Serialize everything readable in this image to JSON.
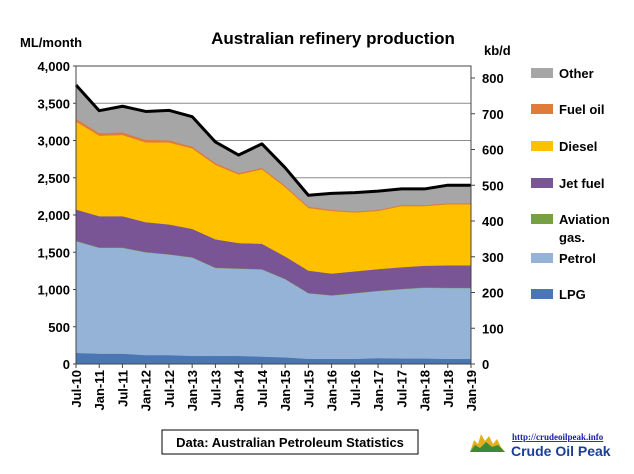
{
  "chart_data": {
    "type": "area",
    "stacked": true,
    "title": "Australian refinery production",
    "ylabel": "ML/month",
    "y2label": "kb/d",
    "ylim": [
      0,
      4000
    ],
    "y2lim": [
      0,
      800
    ],
    "yticks": [
      "4,000",
      "3,500",
      "3,000",
      "2,500",
      "2,000",
      "1,500",
      "1,000",
      "500",
      "0"
    ],
    "y2ticks": [
      "800",
      "700",
      "600",
      "500",
      "400",
      "300",
      "200",
      "100",
      "0"
    ],
    "xtick_labels": [
      "Jul-10",
      "Jan-11",
      "Jul-11",
      "Jan-12",
      "Jul-12",
      "Jan-13",
      "Jul-13",
      "Jan-14",
      "Jul-14",
      "Jan-15",
      "Jul-15",
      "Jan-16",
      "Jul-16",
      "Jan-17",
      "Jul-17",
      "Jan-18",
      "Jul-18",
      "Jan-19"
    ],
    "x_range": [
      "Jul-10",
      "Jan-19"
    ],
    "grid": "horizontal",
    "legend_position": "right",
    "source_note": "Data: Australian Petroleum Statistics",
    "x": [
      "Jul-10",
      "Jan-11",
      "Jul-11",
      "Jan-12",
      "Jul-12",
      "Jan-13",
      "Jul-13",
      "Jan-14",
      "Jul-14",
      "Jan-15",
      "Jul-15",
      "Jan-16",
      "Jul-16",
      "Jan-17",
      "Jul-17",
      "Jan-18",
      "Jul-18",
      "Jan-19"
    ],
    "series": [
      {
        "name": "LPG",
        "color": "#4a76b4",
        "values": [
          150,
          140,
          140,
          120,
          120,
          110,
          110,
          110,
          100,
          90,
          70,
          70,
          70,
          80,
          75,
          75,
          70,
          70
        ]
      },
      {
        "name": "Petrol",
        "color": "#95b3d7",
        "values": [
          1500,
          1420,
          1420,
          1380,
          1350,
          1320,
          1180,
          1170,
          1170,
          1050,
          880,
          850,
          880,
          900,
          930,
          950,
          950,
          950
        ]
      },
      {
        "name": "Aviation gas.",
        "color": "#77a043",
        "values": [
          5,
          5,
          5,
          5,
          5,
          5,
          5,
          5,
          5,
          5,
          5,
          5,
          5,
          5,
          5,
          5,
          5,
          5
        ]
      },
      {
        "name": "Jet fuel",
        "color": "#7a5596",
        "values": [
          420,
          420,
          420,
          400,
          400,
          380,
          380,
          340,
          340,
          300,
          300,
          290,
          290,
          290,
          290,
          290,
          300,
          300
        ]
      },
      {
        "name": "Diesel",
        "color": "#ffc000",
        "values": [
          1180,
          1080,
          1090,
          1070,
          1100,
          1080,
          1000,
          920,
          1000,
          930,
          840,
          840,
          790,
          780,
          820,
          800,
          820,
          820
        ]
      },
      {
        "name": "Fuel oil",
        "color": "#e07c39",
        "values": [
          40,
          35,
          35,
          35,
          30,
          25,
          25,
          20,
          20,
          20,
          20,
          15,
          15,
          15,
          15,
          15,
          15,
          15
        ]
      },
      {
        "name": "Other",
        "color": "#a6a6a6",
        "values": [
          450,
          300,
          350,
          380,
          400,
          400,
          280,
          240,
          320,
          240,
          150,
          220,
          250,
          250,
          215,
          215,
          240,
          240
        ]
      }
    ],
    "total": {
      "name": "Total",
      "color": "#000000",
      "values": [
        3745,
        3400,
        3460,
        3390,
        3405,
        3320,
        2980,
        2805,
        2955,
        2635,
        2265,
        2290,
        2300,
        2320,
        2350,
        2350,
        2400,
        2400
      ]
    }
  },
  "footer": {
    "logo_url": "http://crudeoilpeak.info",
    "logo_name": "Crude Oil Peak"
  }
}
